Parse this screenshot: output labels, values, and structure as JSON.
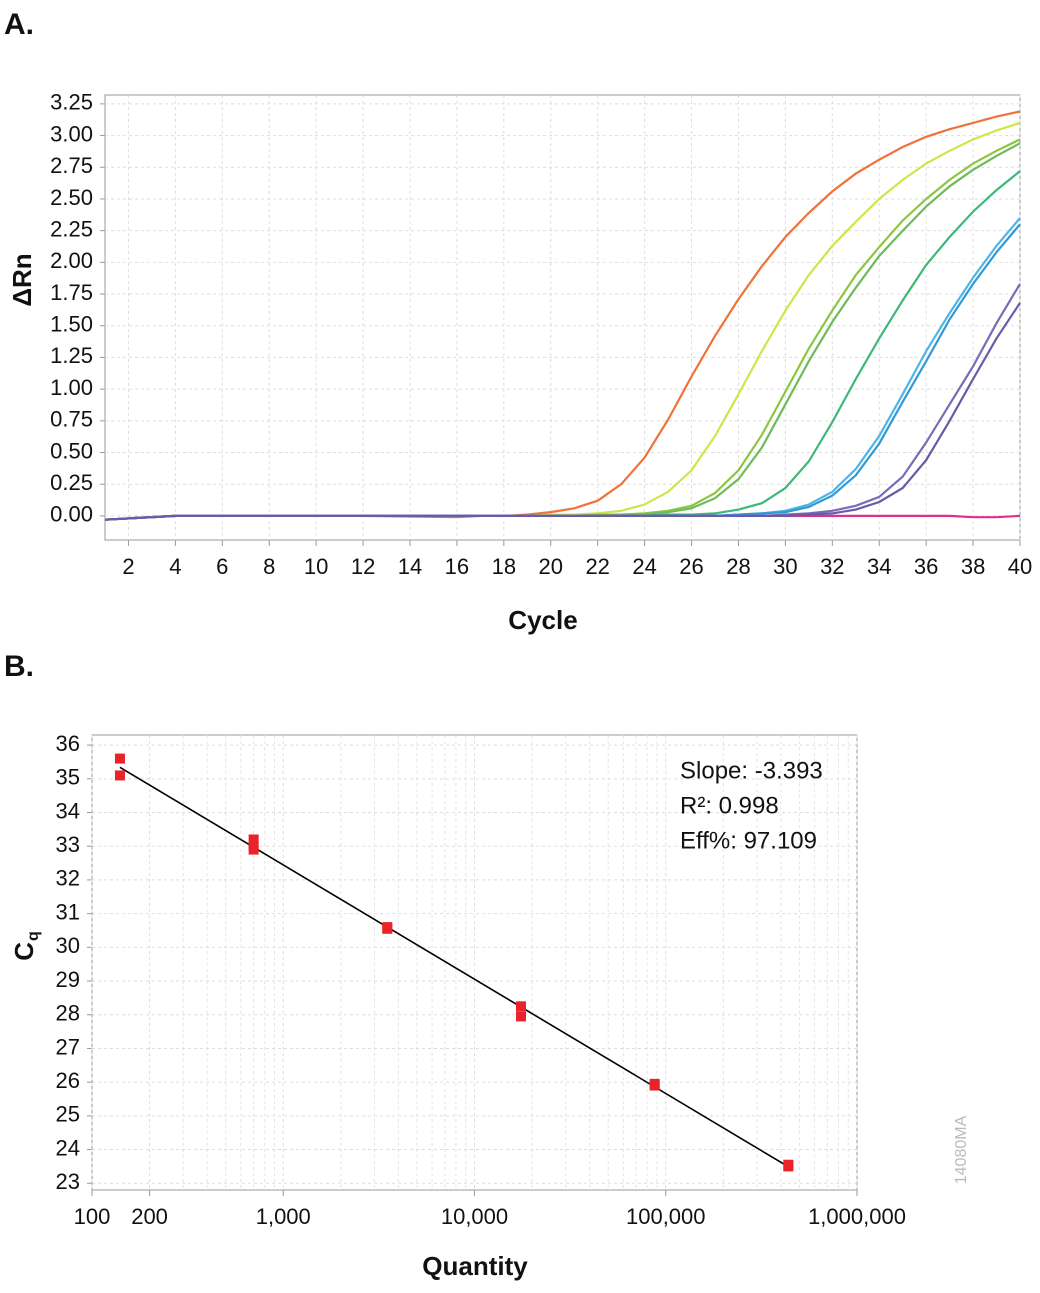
{
  "chart_data": [
    {
      "type": "line",
      "label": "A.",
      "xlabel": "Cycle",
      "ylabel": "ΔRn",
      "x": [
        1,
        2,
        4,
        8,
        12,
        16,
        17,
        18,
        19,
        20,
        21,
        22,
        23,
        24,
        25,
        26,
        27,
        28,
        29,
        30,
        31,
        32,
        33,
        34,
        35,
        36,
        37,
        38,
        39,
        40
      ],
      "xlim": [
        1,
        40
      ],
      "ylim": [
        -0.19,
        3.32
      ],
      "xticks": [
        2,
        4,
        6,
        8,
        10,
        12,
        14,
        16,
        18,
        20,
        22,
        24,
        26,
        28,
        30,
        32,
        34,
        36,
        38,
        40
      ],
      "yticks": [
        {
          "value": 0,
          "label": "0.00"
        },
        {
          "value": 0.25,
          "label": "0.25"
        },
        {
          "value": 0.5,
          "label": "0.50"
        },
        {
          "value": 0.75,
          "label": "0.75"
        },
        {
          "value": 1,
          "label": "1.00"
        },
        {
          "value": 1.25,
          "label": "1.25"
        },
        {
          "value": 1.5,
          "label": "1.50"
        },
        {
          "value": 1.75,
          "label": "1.75"
        },
        {
          "value": 2,
          "label": "2.00"
        },
        {
          "value": 2.25,
          "label": "2.25"
        },
        {
          "value": 2.5,
          "label": "2.50"
        },
        {
          "value": 2.75,
          "label": "2.75"
        },
        {
          "value": 3,
          "label": "3.00"
        },
        {
          "value": 3.25,
          "label": "3.25"
        }
      ],
      "grid": true,
      "series": [
        {
          "color": "#e0308c",
          "values": [
            -0.03,
            -0.02,
            0,
            0,
            0,
            0,
            0,
            0,
            0,
            0,
            0,
            0,
            0,
            0,
            0,
            0,
            0,
            0,
            0,
            0,
            0,
            0,
            0,
            0,
            0,
            0,
            0,
            -0.01,
            -0.01,
            0
          ]
        },
        {
          "color": "#f07238",
          "values": [
            -0.03,
            -0.02,
            0,
            0,
            0,
            -0.01,
            0,
            0,
            0.01,
            0.03,
            0.06,
            0.12,
            0.25,
            0.46,
            0.76,
            1.1,
            1.42,
            1.71,
            1.97,
            2.2,
            2.39,
            2.56,
            2.7,
            2.81,
            2.91,
            2.99,
            3.05,
            3.1,
            3.15,
            3.19
          ]
        },
        {
          "color": "#d4e34a",
          "values": [
            -0.03,
            -0.02,
            0,
            0,
            0,
            0,
            0,
            0,
            0,
            0.01,
            0.01,
            0.02,
            0.04,
            0.09,
            0.19,
            0.36,
            0.63,
            0.96,
            1.3,
            1.62,
            1.9,
            2.13,
            2.32,
            2.5,
            2.65,
            2.78,
            2.88,
            2.97,
            3.04,
            3.1
          ]
        },
        {
          "color": "#8cc63f",
          "values": [
            -0.03,
            -0.02,
            0,
            0,
            0,
            0,
            0,
            0,
            0,
            0,
            0,
            0.01,
            0.01,
            0.02,
            0.04,
            0.08,
            0.18,
            0.36,
            0.64,
            0.98,
            1.32,
            1.62,
            1.9,
            2.12,
            2.33,
            2.5,
            2.65,
            2.78,
            2.88,
            2.97
          ]
        },
        {
          "color": "#6dbb5a",
          "values": [
            -0.03,
            -0.02,
            0,
            0,
            0,
            0,
            0,
            0,
            0,
            0,
            0,
            0,
            0.01,
            0.01,
            0.03,
            0.06,
            0.14,
            0.29,
            0.54,
            0.88,
            1.22,
            1.53,
            1.8,
            2.05,
            2.25,
            2.44,
            2.6,
            2.73,
            2.84,
            2.94
          ]
        },
        {
          "color": "#3cb878",
          "values": [
            -0.03,
            -0.02,
            0,
            0,
            0,
            0,
            0,
            0,
            0,
            0,
            0,
            0,
            0,
            0,
            0.01,
            0.01,
            0.02,
            0.05,
            0.1,
            0.22,
            0.43,
            0.74,
            1.08,
            1.4,
            1.7,
            1.98,
            2.2,
            2.4,
            2.57,
            2.72
          ]
        },
        {
          "color": "#4fb4e8",
          "values": [
            -0.03,
            -0.02,
            0,
            0,
            0,
            0,
            0,
            0,
            0,
            0,
            0,
            0,
            0,
            0,
            0,
            0,
            0,
            0.01,
            0.02,
            0.04,
            0.09,
            0.19,
            0.37,
            0.63,
            0.96,
            1.3,
            1.6,
            1.88,
            2.13,
            2.35
          ]
        },
        {
          "color": "#2f9ad6",
          "values": [
            -0.03,
            -0.02,
            0,
            0,
            0,
            0,
            0,
            0,
            0,
            0,
            0,
            0,
            0,
            0,
            0,
            0,
            0,
            0.01,
            0.02,
            0.03,
            0.07,
            0.16,
            0.32,
            0.57,
            0.9,
            1.22,
            1.55,
            1.83,
            2.08,
            2.3
          ]
        },
        {
          "color": "#7b6bb5",
          "values": [
            -0.03,
            -0.02,
            0,
            0,
            0,
            0,
            0,
            0,
            0,
            0,
            0,
            0,
            0,
            0,
            0,
            0,
            0,
            0,
            0,
            0.01,
            0.02,
            0.04,
            0.08,
            0.15,
            0.31,
            0.58,
            0.88,
            1.18,
            1.52,
            1.83
          ]
        },
        {
          "color": "#6a5aa8",
          "values": [
            -0.03,
            -0.02,
            0,
            0,
            0,
            0,
            0,
            0,
            0,
            0,
            0,
            0,
            0,
            0,
            0,
            0,
            0,
            0,
            0,
            0,
            0.01,
            0.02,
            0.05,
            0.11,
            0.22,
            0.44,
            0.75,
            1.08,
            1.4,
            1.68
          ]
        }
      ]
    },
    {
      "type": "scatter",
      "label": "B.",
      "xlabel": "Quantity",
      "ylabel": "C",
      "ylabel_sub": "q",
      "log_x": true,
      "xlim": [
        100,
        1000000
      ],
      "ylim": [
        22.8,
        36.3
      ],
      "xticks": [
        100,
        200,
        {
          "value": 1000,
          "label": "1,000"
        },
        {
          "value": 10000,
          "label": "10,000"
        },
        {
          "value": 100000,
          "label": "100,000"
        },
        {
          "value": 1000000,
          "label": "1,000,000"
        }
      ],
      "xminor": [
        300,
        400,
        500,
        600,
        700,
        800,
        900,
        2000,
        3000,
        4000,
        5000,
        6000,
        7000,
        8000,
        9000,
        20000,
        30000,
        40000,
        50000,
        60000,
        70000,
        80000,
        90000,
        200000,
        300000,
        400000,
        500000,
        600000,
        700000,
        800000,
        900000
      ],
      "yticks": [
        23,
        24,
        25,
        26,
        27,
        28,
        29,
        30,
        31,
        32,
        33,
        34,
        35,
        36
      ],
      "grid": true,
      "color": "#e8232a",
      "x": [
        140,
        140,
        700,
        700,
        700,
        3500,
        3500,
        17500,
        17500,
        87500,
        87500,
        437500,
        437500
      ],
      "values": [
        35.6,
        35.1,
        33.2,
        33.0,
        32.9,
        30.6,
        30.55,
        28.25,
        27.95,
        25.9,
        25.95,
        23.5,
        23.55
      ],
      "fit": {
        "x": [
          140,
          437500
        ],
        "values": [
          35.34,
          23.49
        ]
      },
      "annotations": [
        "Slope: -3.393",
        "R²: 0.998",
        "Eff%: 97.109"
      ],
      "watermark": "14080MA"
    }
  ]
}
